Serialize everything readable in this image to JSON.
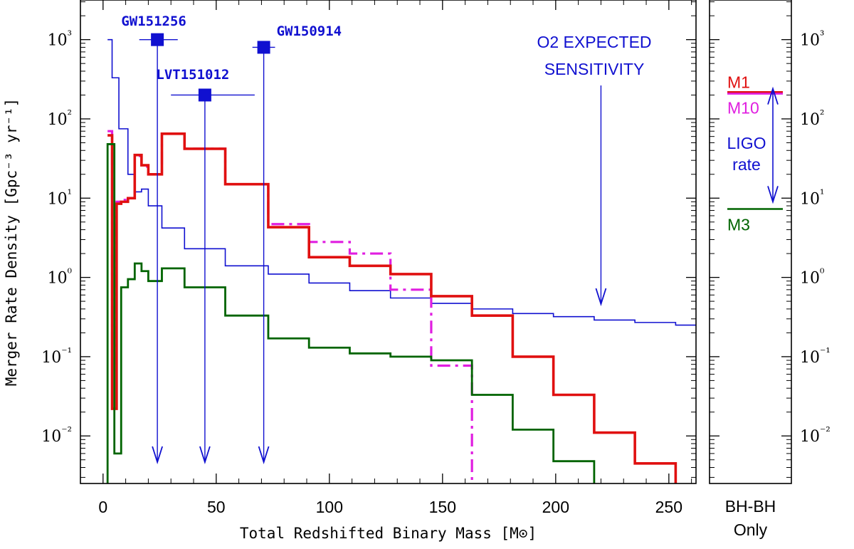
{
  "chart_data": [
    {
      "type": "line",
      "xlabel": "Total Redshifted Binary Mass [M⊙]",
      "ylabel": "Merger Rate Density [Gpc⁻³ yr⁻¹]",
      "xlim": [
        -10,
        262
      ],
      "ylim_log10": [
        -2.6,
        3.5
      ],
      "x_ticks": [
        0,
        50,
        100,
        150,
        200,
        250
      ],
      "y_ticks": [
        {
          "exp": -2,
          "label": "10⁻²"
        },
        {
          "exp": -1,
          "label": "10⁻¹"
        },
        {
          "exp": 0,
          "label": "10⁰"
        },
        {
          "exp": 1,
          "label": "10¹"
        },
        {
          "exp": 2,
          "label": "10²"
        },
        {
          "exp": 3,
          "label": "10³"
        }
      ],
      "series": [
        {
          "name": "O2 expected sensitivity",
          "color": "#1010d0",
          "style": "solid",
          "steps": [
            [
              2,
              4,
              1.6,
              1000
            ],
            [
              4,
              7,
              18,
              330
            ],
            [
              7,
              11,
              1.6,
              75
            ],
            [
              11,
              14,
              1.6,
              20
            ],
            [
              14,
              17,
              1.6,
              12
            ],
            [
              17,
              20,
              1.6,
              13
            ],
            [
              20,
              26,
              1.6,
              8
            ],
            [
              26,
              36,
              1.6,
              4.2
            ],
            [
              36,
              54,
              1.6,
              2.3
            ],
            [
              54,
              73,
              1.6,
              1.4
            ],
            [
              73,
              91,
              1.6,
              1.1
            ],
            [
              91,
              109,
              1.6,
              0.85
            ],
            [
              109,
              127,
              1.6,
              0.68
            ],
            [
              127,
              145,
              1.6,
              0.55
            ],
            [
              145,
              163,
              1.6,
              0.47
            ],
            [
              163,
              181,
              1.6,
              0.4
            ],
            [
              181,
              199,
              1.6,
              0.35
            ],
            [
              199,
              217,
              1.6,
              0.32
            ],
            [
              217,
              235,
              1.6,
              0.29
            ],
            [
              235,
              253,
              1.6,
              0.27
            ],
            [
              253,
              262,
              1.6,
              0.25
            ]
          ]
        },
        {
          "name": "M10",
          "color": "#e01ee0",
          "style": "dashdot",
          "steps": [
            [
              2,
              4,
              3.2,
              70
            ],
            [
              4,
              6,
              3.2,
              0.065
            ],
            [
              6,
              8,
              3.2,
              9
            ],
            [
              8,
              11,
              3.2,
              9.5
            ],
            [
              11,
              14,
              3.2,
              10
            ],
            [
              14,
              17,
              3.2,
              34
            ],
            [
              17,
              20,
              3.2,
              25
            ],
            [
              20,
              26,
              3.2,
              20
            ],
            [
              26,
              36,
              3.2,
              65
            ],
            [
              36,
              54,
              3.2,
              42
            ],
            [
              54,
              73,
              3.2,
              15
            ],
            [
              73,
              91,
              3.2,
              4.7
            ],
            [
              91,
              109,
              3.2,
              2.8
            ],
            [
              109,
              127,
              3.2,
              2
            ],
            [
              127,
              145,
              3.2,
              0.7
            ],
            [
              145,
              163,
              3.2,
              0.077
            ],
            [
              163,
              165,
              3.2,
              0.001
            ]
          ]
        },
        {
          "name": "M1",
          "color": "#e01010",
          "style": "solid",
          "steps": [
            [
              2,
              4,
              3.6,
              62
            ],
            [
              4,
              6,
              3.6,
              0.022
            ],
            [
              6,
              8,
              3.6,
              8.5
            ],
            [
              8,
              11,
              3.6,
              9
            ],
            [
              11,
              14,
              3.6,
              10
            ],
            [
              14,
              17,
              3.6,
              35
            ],
            [
              17,
              20,
              3.6,
              26
            ],
            [
              20,
              26,
              3.6,
              20
            ],
            [
              26,
              36,
              3.6,
              65
            ],
            [
              36,
              54,
              3.6,
              42
            ],
            [
              54,
              73,
              3.6,
              15
            ],
            [
              73,
              91,
              3.6,
              4.3
            ],
            [
              91,
              109,
              3.6,
              1.8
            ],
            [
              109,
              127,
              3.6,
              1.4
            ],
            [
              127,
              145,
              3.6,
              1.1
            ],
            [
              145,
              163,
              3.6,
              0.58
            ],
            [
              163,
              181,
              3.6,
              0.33
            ],
            [
              181,
              199,
              3.6,
              0.1
            ],
            [
              199,
              217,
              3.6,
              0.033
            ],
            [
              217,
              235,
              3.6,
              0.011
            ],
            [
              235,
              253,
              3.6,
              0.0045
            ],
            [
              253,
              253.3,
              3.6,
              0.001
            ]
          ]
        },
        {
          "name": "M3",
          "color": "#006400",
          "style": "solid",
          "steps": [
            [
              1.5,
              2,
              2.8,
              0.001
            ],
            [
              2,
              5,
              2.8,
              48
            ],
            [
              5,
              8,
              2.8,
              0.006
            ],
            [
              8,
              11,
              2.8,
              0.75
            ],
            [
              11,
              14,
              2.8,
              0.95
            ],
            [
              14,
              17,
              2.8,
              1.5
            ],
            [
              17,
              20,
              2.8,
              1.2
            ],
            [
              20,
              26,
              2.8,
              0.9
            ],
            [
              26,
              36,
              2.8,
              1.3
            ],
            [
              36,
              54,
              2.8,
              0.75
            ],
            [
              54,
              73,
              2.8,
              0.33
            ],
            [
              73,
              91,
              2.8,
              0.17
            ],
            [
              91,
              109,
              2.8,
              0.13
            ],
            [
              109,
              127,
              2.8,
              0.11
            ],
            [
              127,
              145,
              2.8,
              0.1
            ],
            [
              145,
              163,
              2.8,
              0.09
            ],
            [
              163,
              181,
              2.8,
              0.033
            ],
            [
              181,
              199,
              2.8,
              0.012
            ],
            [
              199,
              217,
              2.8,
              0.0048
            ],
            [
              217,
              218,
              2.8,
              0.001
            ]
          ]
        }
      ],
      "events": [
        {
          "name": "GW151256",
          "label": "GW151256",
          "mass": 24,
          "mass_lo": 16,
          "mass_hi": 33,
          "rate": 1000
        },
        {
          "name": "LVT151012",
          "label": "LVT151012",
          "mass": 45,
          "mass_lo": 30,
          "mass_hi": 67,
          "rate": 200
        },
        {
          "name": "GW150914",
          "label": "GW150914",
          "mass": 71,
          "mass_lo": 66,
          "mass_hi": 76,
          "rate": 800
        }
      ],
      "sensitivity_label": [
        "O2 EXPECTED",
        "SENSITIVITY"
      ],
      "sensitivity_arrow_mass": 220
    },
    {
      "type": "bar",
      "xlabel": [
        "BH-BH",
        "Only"
      ],
      "ylim_log10": [
        -2.6,
        3.5
      ],
      "y_ticks": [
        {
          "exp": -2,
          "label": "10⁻²"
        },
        {
          "exp": -1,
          "label": "10⁻¹"
        },
        {
          "exp": 0,
          "label": "10⁰"
        },
        {
          "exp": 1,
          "label": "10¹"
        },
        {
          "exp": 2,
          "label": "10²"
        },
        {
          "exp": 3,
          "label": "10³"
        }
      ],
      "levels": [
        {
          "name": "M1",
          "label": "M1",
          "value": 218,
          "color": "#e01010"
        },
        {
          "name": "M10",
          "label": "M10",
          "value": 208,
          "color": "#e01ee0"
        },
        {
          "name": "M3",
          "label": "M3",
          "value": 7.3,
          "color": "#006400"
        }
      ],
      "ligo_rate": {
        "label": [
          "LIGO",
          "rate"
        ],
        "low": 9,
        "high": 240,
        "color": "#1010d0"
      }
    }
  ]
}
